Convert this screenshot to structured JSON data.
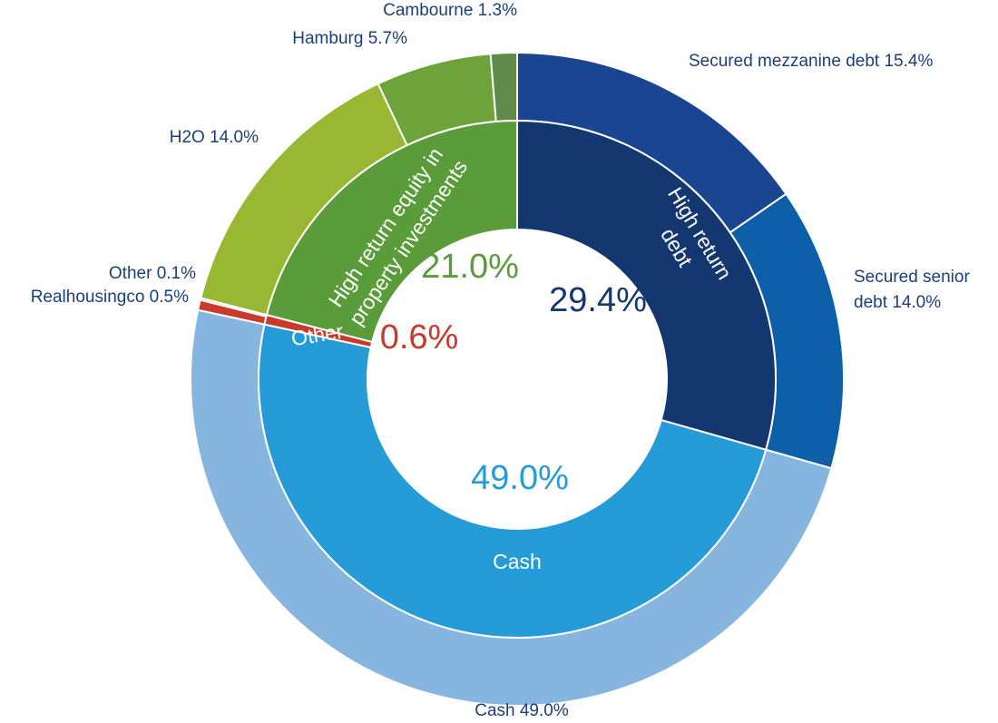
{
  "chart_data": {
    "type": "pie",
    "subtype": "nested-donut",
    "title": "",
    "inner_ring": [
      {
        "name": "High return debt",
        "lines": [
          "High return",
          "debt"
        ],
        "value": 29.4,
        "value_label": "29.4%",
        "color": "#143770",
        "label_color": "#143770"
      },
      {
        "name": "Cash",
        "lines": [
          "Cash"
        ],
        "value": 49.0,
        "value_label": "49.0%",
        "color": "#259bd8",
        "label_color": "#259bd8"
      },
      {
        "name": "Other",
        "lines": [
          "Other"
        ],
        "value": 0.6,
        "value_label": "0.6%",
        "color": "#c93a2c",
        "label_color": "#c93a2c"
      },
      {
        "name": "High return equity in property investments",
        "lines": [
          "High return equity in",
          "property investments"
        ],
        "value": 21.0,
        "value_label": "21.0%",
        "color": "#5a9b3a",
        "label_color": "#5a9b3a"
      }
    ],
    "outer_ring": [
      {
        "name": "Secured mezzanine debt",
        "value": 15.4,
        "lines": [
          "Secured mezzanine debt 15.4%"
        ],
        "color": "#1a4590"
      },
      {
        "name": "Secured senior debt",
        "value": 14.0,
        "lines": [
          "Secured senior",
          "debt 14.0%"
        ],
        "color": "#0c5fa8"
      },
      {
        "name": "Cash",
        "value": 49.0,
        "lines": [
          "Cash 49.0%"
        ],
        "color": "#86b6df"
      },
      {
        "name": "Realhousingco",
        "value": 0.5,
        "lines": [
          "Realhousingco 0.5%"
        ],
        "color": "#c93a2c"
      },
      {
        "name": "Other",
        "value": 0.1,
        "lines": [
          "Other 0.1%"
        ],
        "color": "#9b5a3a"
      },
      {
        "name": "H2O",
        "value": 14.0,
        "lines": [
          "H2O 14.0%"
        ],
        "color": "#98b833"
      },
      {
        "name": "Hamburg",
        "value": 5.7,
        "lines": [
          "Hamburg 5.7%"
        ],
        "color": "#6ea23a"
      },
      {
        "name": "Cambourne",
        "value": 1.3,
        "lines": [
          "Cambourne 1.3%"
        ],
        "color": "#5f8a4a"
      }
    ]
  }
}
